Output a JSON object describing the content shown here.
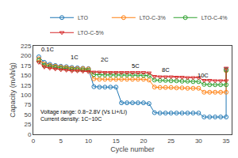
{
  "chart_data": {
    "type": "line",
    "xlabel": "Cycle number",
    "ylabel": "Capacity (mAh/g)",
    "xlim": [
      0,
      36
    ],
    "ylim": [
      0,
      225
    ],
    "xticks": [
      0,
      5,
      10,
      15,
      20,
      25,
      30,
      35
    ],
    "yticks": [
      0,
      25,
      50,
      75,
      100,
      125,
      150,
      175,
      200,
      225
    ],
    "grid": false,
    "legend": "upper right",
    "x": [
      1,
      2,
      3,
      4,
      5,
      6,
      7,
      8,
      9,
      10,
      11,
      12,
      13,
      14,
      15,
      16,
      17,
      18,
      19,
      20,
      21,
      22,
      23,
      24,
      25,
      26,
      27,
      28,
      29,
      30,
      31,
      32,
      33,
      34,
      35,
      35
    ],
    "series": [
      {
        "name": "LTO",
        "marker": "circle",
        "values": [
          197,
          183,
          178,
          175,
          173,
          172,
          170,
          169,
          168,
          167,
          121,
          120,
          120,
          120,
          120,
          80,
          80,
          80,
          80,
          80,
          78,
          55,
          54,
          54,
          54,
          54,
          54,
          54,
          54,
          54,
          44,
          44,
          44,
          44,
          44,
          165
        ]
      },
      {
        "name": "LTO-C-3%",
        "marker": "circle",
        "values": [
          192,
          179,
          175,
          173,
          171,
          170,
          168,
          167,
          167,
          166,
          141,
          140,
          140,
          140,
          140,
          140,
          140,
          140,
          140,
          140,
          138,
          120,
          119,
          119,
          119,
          118,
          118,
          117,
          117,
          117,
          107,
          107,
          107,
          107,
          107,
          162
        ]
      },
      {
        "name": "LTO-C-4%",
        "marker": "circle",
        "values": [
          188,
          175,
          172,
          170,
          168,
          167,
          165,
          164,
          164,
          163,
          152,
          151,
          151,
          151,
          151,
          151,
          151,
          151,
          151,
          150,
          149,
          138,
          137,
          137,
          136,
          136,
          135,
          135,
          134,
          134,
          127,
          126,
          126,
          126,
          126,
          163
        ]
      },
      {
        "name": "LTO-C-5%",
        "marker": "triangle-down",
        "values": [
          183,
          171,
          168,
          166,
          164,
          163,
          161,
          161,
          160,
          159,
          158,
          158,
          157,
          157,
          157,
          157,
          157,
          157,
          157,
          157,
          156,
          147,
          146,
          146,
          146,
          145,
          145,
          144,
          144,
          144,
          137,
          137,
          136,
          136,
          136,
          168
        ]
      }
    ],
    "annotations": [
      {
        "text": "0.1C",
        "x": 1.2,
        "y": 202
      },
      {
        "text": "1C",
        "x": 6.5,
        "y": 183
      },
      {
        "text": "2C",
        "x": 12,
        "y": 176
      },
      {
        "text": "5C",
        "x": 17.5,
        "y": 160
      },
      {
        "text": "8C",
        "x": 23,
        "y": 151
      },
      {
        "text": "10C",
        "x": 29.5,
        "y": 136
      },
      {
        "text": "Voltage range: 0.8~2.8V (Vs Li+/Li)\nCurrent density: 1C~10C",
        "x": 1.0,
        "y": 68
      }
    ]
  }
}
